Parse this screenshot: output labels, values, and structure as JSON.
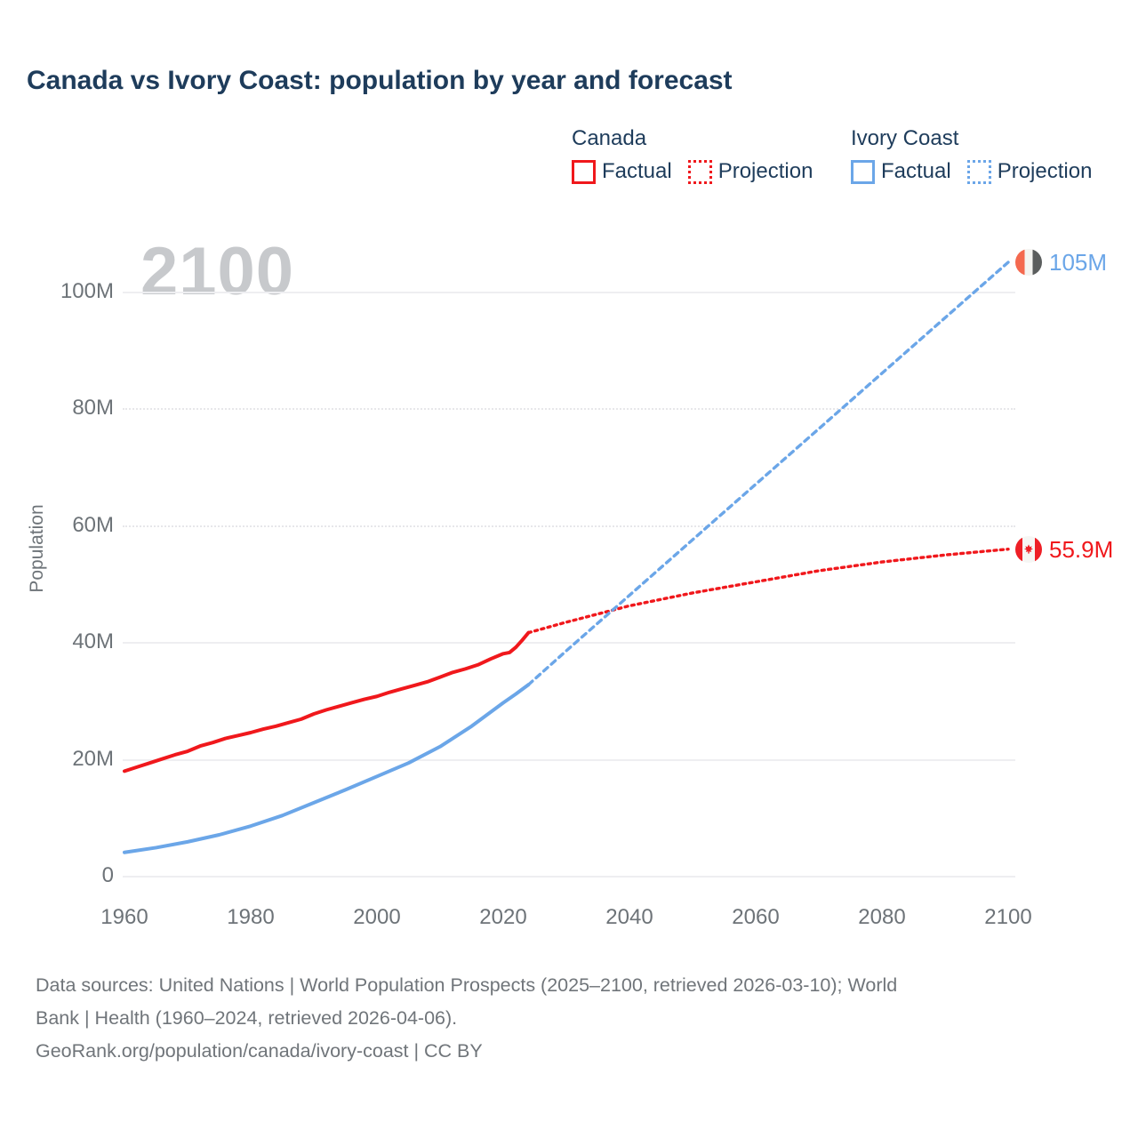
{
  "title": "Canada vs Ivory Coast: population by year and forecast",
  "watermark": "2100",
  "colors": {
    "canada_red": "#f0181c",
    "ivory_blue": "#6ba6e8",
    "title_navy": "#1e3c5b",
    "axis_gray": "#6d7378",
    "watermark_gray": "#c7c9cc",
    "gridline_gray": "#ececef"
  },
  "legend": {
    "groups": [
      {
        "country": "Canada",
        "color": "#f0181c",
        "items": [
          {
            "label": "Factual",
            "style": "solid"
          },
          {
            "label": "Projection",
            "style": "dotted"
          }
        ]
      },
      {
        "country": "Ivory Coast",
        "color": "#6ba6e8",
        "items": [
          {
            "label": "Factual",
            "style": "solid"
          },
          {
            "label": "Projection",
            "style": "dotted"
          }
        ]
      }
    ]
  },
  "footer": {
    "lines": [
      "Data sources: United Nations | World Population Prospects (2025–2100, retrieved 2026-03-10); World",
      "Bank | Health (1960–2024, retrieved 2026-04-06).",
      "GeoRank.org/population/canada/ivory-coast | CC BY"
    ]
  },
  "chart_data": {
    "type": "line",
    "title": "Canada vs Ivory Coast: population by year and forecast",
    "xlabel": "",
    "ylabel": "Population",
    "xlim": [
      1960,
      2100
    ],
    "ylim": [
      0,
      110
    ],
    "unit": "millions",
    "grid": "horizontal",
    "legend_position": "top-right",
    "x_ticks": [
      1960,
      1980,
      2000,
      2020,
      2040,
      2060,
      2080,
      2100
    ],
    "x_tick_labels": [
      "1960",
      "1980",
      "2000",
      "2020",
      "2040",
      "2060",
      "2080",
      "2100"
    ],
    "y_ticks": [
      0,
      20,
      40,
      60,
      80,
      100
    ],
    "y_tick_labels": [
      "0",
      "20M",
      "40M",
      "60M",
      "80M",
      "100M"
    ],
    "dotted_gridline_values": [
      60,
      80
    ],
    "watermark": "2100",
    "series": [
      {
        "name": "Canada Factual",
        "color": "#f0181c",
        "style": "solid",
        "points": [
          [
            1960,
            17.9
          ],
          [
            1962,
            18.6
          ],
          [
            1964,
            19.3
          ],
          [
            1966,
            20.0
          ],
          [
            1968,
            20.7
          ],
          [
            1970,
            21.3
          ],
          [
            1972,
            22.2
          ],
          [
            1974,
            22.8
          ],
          [
            1976,
            23.5
          ],
          [
            1978,
            24.0
          ],
          [
            1980,
            24.5
          ],
          [
            1982,
            25.1
          ],
          [
            1984,
            25.6
          ],
          [
            1986,
            26.2
          ],
          [
            1988,
            26.8
          ],
          [
            1990,
            27.7
          ],
          [
            1992,
            28.4
          ],
          [
            1994,
            29.0
          ],
          [
            1996,
            29.6
          ],
          [
            1998,
            30.2
          ],
          [
            2000,
            30.7
          ],
          [
            2002,
            31.4
          ],
          [
            2004,
            32.0
          ],
          [
            2006,
            32.6
          ],
          [
            2008,
            33.2
          ],
          [
            2010,
            34.0
          ],
          [
            2012,
            34.8
          ],
          [
            2014,
            35.4
          ],
          [
            2016,
            36.1
          ],
          [
            2018,
            37.1
          ],
          [
            2020,
            38.0
          ],
          [
            2021,
            38.2
          ],
          [
            2022,
            39.1
          ],
          [
            2023,
            40.3
          ],
          [
            2024,
            41.6
          ]
        ]
      },
      {
        "name": "Canada Projection",
        "color": "#f0181c",
        "style": "dotted",
        "points": [
          [
            2024,
            41.6
          ],
          [
            2030,
            43.4
          ],
          [
            2040,
            46.2
          ],
          [
            2050,
            48.4
          ],
          [
            2060,
            50.3
          ],
          [
            2070,
            52.2
          ],
          [
            2080,
            53.7
          ],
          [
            2090,
            54.9
          ],
          [
            2100,
            55.9
          ]
        ]
      },
      {
        "name": "Ivory Coast Factual",
        "color": "#6ba6e8",
        "style": "solid",
        "points": [
          [
            1960,
            4.0
          ],
          [
            1965,
            4.8
          ],
          [
            1970,
            5.8
          ],
          [
            1975,
            7.0
          ],
          [
            1980,
            8.5
          ],
          [
            1985,
            10.3
          ],
          [
            1990,
            12.5
          ],
          [
            1995,
            14.7
          ],
          [
            2000,
            17.0
          ],
          [
            2005,
            19.3
          ],
          [
            2010,
            22.1
          ],
          [
            2015,
            25.6
          ],
          [
            2020,
            29.6
          ],
          [
            2022,
            31.1
          ],
          [
            2024,
            32.7
          ]
        ]
      },
      {
        "name": "Ivory Coast Projection",
        "color": "#6ba6e8",
        "style": "dotted",
        "points": [
          [
            2024,
            32.7
          ],
          [
            2030,
            38.5
          ],
          [
            2040,
            48.0
          ],
          [
            2050,
            57.5
          ],
          [
            2060,
            67.0
          ],
          [
            2070,
            76.5
          ],
          [
            2080,
            86.0
          ],
          [
            2090,
            95.5
          ],
          [
            2100,
            105.0
          ]
        ]
      }
    ],
    "end_labels": [
      {
        "series": "Ivory Coast Projection",
        "year": 2100,
        "value": 105,
        "label": "105M",
        "flag": "ivory-coast",
        "color": "#6ba6e8"
      },
      {
        "series": "Canada Projection",
        "year": 2100,
        "value": 55.9,
        "label": "55.9M",
        "flag": "canada",
        "color": "#f0181c"
      }
    ]
  }
}
